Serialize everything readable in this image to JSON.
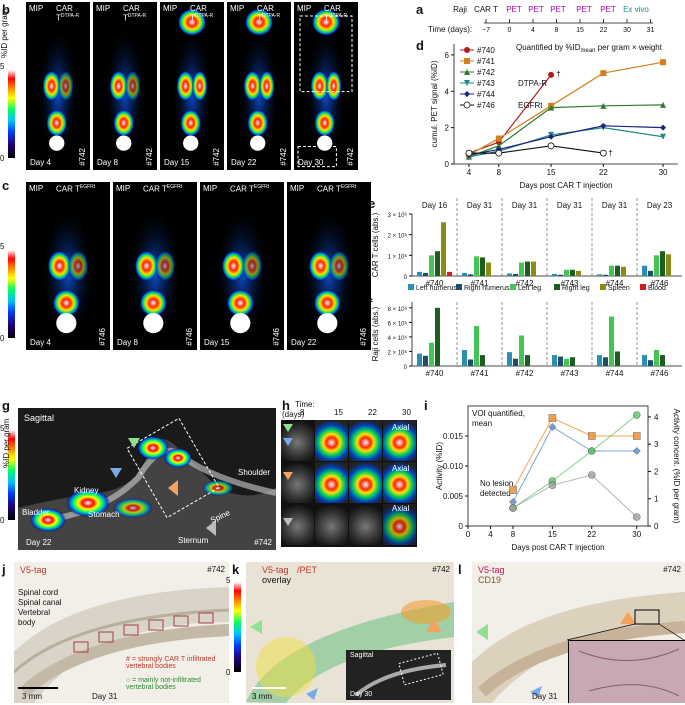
{
  "panel_labels": {
    "a": "a",
    "b": "b",
    "c": "c",
    "d": "d",
    "e": "e",
    "f": "f",
    "g": "g",
    "h": "h",
    "i": "i",
    "j": "j",
    "k": "k",
    "l": "l"
  },
  "colorbar_b": {
    "unit": "%ID per gram",
    "max": "5",
    "min": "0"
  },
  "colorbar_c": {
    "unit": "%ID per gram",
    "max": "5",
    "min": "0"
  },
  "colorbar_g": {
    "unit": "%ID per gram",
    "max": "5",
    "min": "0"
  },
  "colorbar_k": {
    "unit": "%ID/g",
    "max": "5",
    "min": "0"
  },
  "scans_b": [
    {
      "mip": "MIP",
      "car": "CAR T",
      "sup": "DTPA-R",
      "day": "Day 4",
      "id": "#742"
    },
    {
      "mip": "MIP",
      "car": "CAR T",
      "sup": "DTPA-R",
      "day": "Day 8",
      "id": "#742"
    },
    {
      "mip": "MIP",
      "car": "CAR T",
      "sup": "DTPA-R",
      "day": "Day 15",
      "id": "#742"
    },
    {
      "mip": "MIP",
      "car": "CAR T",
      "sup": "DTPA-R",
      "day": "Day 22",
      "id": "#742"
    },
    {
      "mip": "MIP",
      "car": "CAR T",
      "sup": "DTPA-R",
      "day": "Day 30",
      "id": "#742"
    }
  ],
  "scans_c": [
    {
      "mip": "MIP",
      "car": "CAR T",
      "sup": "EGFRt",
      "day": "Day 4",
      "id": "#746"
    },
    {
      "mip": "MIP",
      "car": "CAR T",
      "sup": "EGFRt",
      "day": "Day 8",
      "id": "#746"
    },
    {
      "mip": "MIP",
      "car": "CAR T",
      "sup": "EGFRt",
      "day": "Day 15",
      "id": "#746"
    },
    {
      "mip": "MIP",
      "car": "CAR T",
      "sup": "EGFRt",
      "day": "Day 22",
      "id": "#746"
    }
  ],
  "timeline": {
    "label": "Time (days):",
    "events": [
      {
        "name": "Raji",
        "day": "−7",
        "color": "#111"
      },
      {
        "name": "CAR T",
        "day": "0",
        "color": "#111"
      },
      {
        "name": "PET",
        "day": "4",
        "color": "#b000b0"
      },
      {
        "name": "PET",
        "day": "8",
        "color": "#b000b0"
      },
      {
        "name": "PET",
        "day": "15",
        "color": "#b000b0"
      },
      {
        "name": "PET",
        "day": "22",
        "color": "#b000b0"
      },
      {
        "name": "PET",
        "day": "30",
        "color": "#b000b0"
      },
      {
        "name": "Ex vivo",
        "day": "31",
        "color": "#138f8f"
      }
    ]
  },
  "chart_data": [
    {
      "type": "line",
      "panel": "d",
      "title": "Quantified by %ID",
      "title_sub": "mean",
      "title_rest": " per gram × weight",
      "xlabel": "Days post CAR T injection",
      "ylabel": "cumul. PET signal (%ID)",
      "x_ticks": [
        "4",
        "8",
        "15",
        "22",
        "30"
      ],
      "y_ticks": [
        "0",
        "2",
        "4",
        "6"
      ],
      "xlim": [
        2,
        32
      ],
      "ylim": [
        0,
        6.6
      ],
      "legend_extra": "DTPA-R",
      "legend_extra2": "EGFRt",
      "dagger": "†",
      "series": [
        {
          "name": "#740",
          "color": "#b21a1a",
          "marker": "circle",
          "x": [
            4,
            8,
            15
          ],
          "y": [
            0.6,
            1.2,
            4.9
          ]
        },
        {
          "name": "#741",
          "color": "#d2801e",
          "marker": "square",
          "x": [
            4,
            8,
            15,
            22,
            30
          ],
          "y": [
            0.5,
            1.4,
            3.2,
            5.0,
            5.6
          ]
        },
        {
          "name": "#742",
          "color": "#2e7d32",
          "marker": "triangle",
          "x": [
            4,
            8,
            15,
            22,
            30
          ],
          "y": [
            0.4,
            1.0,
            3.1,
            3.2,
            3.25
          ]
        },
        {
          "name": "#743",
          "color": "#1f8a86",
          "marker": "triangle-down",
          "x": [
            4,
            8,
            15,
            22,
            30
          ],
          "y": [
            0.4,
            0.7,
            1.6,
            2.0,
            1.5
          ]
        },
        {
          "name": "#744",
          "color": "#1a237e",
          "marker": "diamond",
          "x": [
            4,
            8,
            15,
            22,
            30
          ],
          "y": [
            0.5,
            0.8,
            1.5,
            2.1,
            2.0
          ]
        },
        {
          "name": "#746",
          "color": "#111111",
          "marker": "open-circle",
          "x": [
            4,
            8,
            15,
            22
          ],
          "y": [
            0.6,
            0.6,
            1.0,
            0.6
          ]
        }
      ]
    },
    {
      "type": "bar",
      "panel": "e",
      "ylabel": "CAR T cells (abs.)",
      "y_ticks": [
        "0",
        "1 × 10⁶",
        "2 × 10⁶",
        "3 × 10⁶"
      ],
      "ylim": [
        0,
        3000000
      ],
      "groups": [
        {
          "mouse": "#740",
          "day": "Day 16",
          "values": [
            200000,
            150000,
            1000000,
            1200000,
            2600000,
            200000
          ]
        },
        {
          "mouse": "#741",
          "day": "Day 31",
          "values": [
            150000,
            80000,
            950000,
            900000,
            650000,
            0
          ]
        },
        {
          "mouse": "#742",
          "day": "Day 31",
          "values": [
            120000,
            100000,
            650000,
            700000,
            700000,
            0
          ]
        },
        {
          "mouse": "#743",
          "day": "Day 31",
          "values": [
            100000,
            60000,
            300000,
            300000,
            250000,
            0
          ]
        },
        {
          "mouse": "#744",
          "day": "Day 31",
          "values": [
            80000,
            60000,
            500000,
            500000,
            450000,
            0
          ]
        },
        {
          "mouse": "#746",
          "day": "Day 23",
          "values": [
            500000,
            250000,
            1000000,
            1200000,
            1050000,
            0
          ]
        }
      ]
    },
    {
      "type": "bar",
      "panel": "f",
      "ylabel": "Raji cells (abs.)",
      "y_ticks": [
        "0",
        "2 × 10⁶",
        "4 × 10⁶",
        "6 × 10⁶",
        "8 × 10⁶"
      ],
      "ylim": [
        0,
        8800000
      ],
      "legend": [
        "Left humerus",
        "Right humerus",
        "Left leg",
        "Right leg",
        "Spleen",
        "Blood"
      ],
      "legend_colors": [
        "#2a8fb0",
        "#1d4e6b",
        "#44c553",
        "#1b5e20",
        "#8b8b16",
        "#d41e1e"
      ],
      "groups": [
        {
          "mouse": "#740",
          "values": [
            1700000,
            1400000,
            3200000,
            8000000,
            0,
            0
          ]
        },
        {
          "mouse": "#741",
          "values": [
            2200000,
            900000,
            5500000,
            1500000,
            0,
            0
          ]
        },
        {
          "mouse": "#742",
          "values": [
            1900000,
            1000000,
            4200000,
            1500000,
            0,
            0
          ]
        },
        {
          "mouse": "#743",
          "values": [
            1500000,
            1300000,
            1000000,
            1200000,
            0,
            0
          ]
        },
        {
          "mouse": "#744",
          "values": [
            1500000,
            1200000,
            6800000,
            2000000,
            0,
            0
          ]
        },
        {
          "mouse": "#746",
          "values": [
            1500000,
            800000,
            2200000,
            1500000,
            0,
            0
          ]
        }
      ]
    },
    {
      "type": "line",
      "panel": "i",
      "title": "VOI quantified, mean",
      "xlabel": "Days post CAR T injection",
      "ylabel": "Activity (%ID)",
      "ylabel_right": "Activity concent. (%ID per gram)",
      "x_ticks": [
        "0",
        "4",
        "8",
        "15",
        "22",
        "30"
      ],
      "y_ticks": [
        "0",
        "0.005",
        "0.010",
        "0.015"
      ],
      "y2_ticks": [
        "0",
        "1",
        "2",
        "3",
        "4"
      ],
      "xlim": [
        0,
        32
      ],
      "ylim": [
        0,
        0.02
      ],
      "no_lesion": "No lesion detected",
      "series": [
        {
          "color": "#f28c28",
          "marker": "square",
          "x": [
            8,
            15,
            22,
            30
          ],
          "y": [
            0.006,
            0.018,
            0.015,
            0.015
          ]
        },
        {
          "color": "#5b8fd6",
          "marker": "diamond",
          "x": [
            8,
            15,
            22,
            30
          ],
          "y": [
            0.004,
            0.0165,
            0.0125,
            0.0125
          ]
        },
        {
          "color": "#5fc85f",
          "marker": "circle",
          "x": [
            8,
            15,
            22,
            30
          ],
          "y": [
            0.003,
            0.0075,
            0.0125,
            0.0185
          ]
        },
        {
          "color": "#a0a0a0",
          "marker": "circle",
          "x": [
            8,
            15,
            22,
            30
          ],
          "y": [
            0.003,
            0.0068,
            0.0085,
            0.0015
          ]
        }
      ]
    }
  ],
  "panel_g": {
    "view": "Sagittal",
    "labels": [
      "Kidney",
      "Stomach",
      "Bladder",
      "Spine",
      "Shoulder",
      "Sternum"
    ],
    "day": "Day 22",
    "id": "#742"
  },
  "panel_h": {
    "time_label": "Time:",
    "days_label": "(days)",
    "days": [
      "8",
      "15",
      "22",
      "30"
    ],
    "axial": "Axial"
  },
  "panel_j": {
    "title": "V5-tag",
    "id": "#742",
    "labels": [
      "Spinal cord",
      "Spinal canal",
      "Vertebral",
      "body"
    ],
    "legend1": "# = strongly CAR T infiltrated vertebral bodies",
    "legend2": "○ = mainly not-infiltrated vertebral bodies",
    "scale": "3 mm",
    "day": "Day 31"
  },
  "panel_k": {
    "title1": "V5-tag",
    "title2": "/PET",
    "title3": "overlay",
    "id": "#742",
    "scale": "3 mm",
    "inset_view": "Sagittal",
    "inset_day": "Day 30"
  },
  "panel_l": {
    "title1": "V5-tag",
    "title2": "CD19",
    "id": "#742",
    "day": "Day 31"
  }
}
